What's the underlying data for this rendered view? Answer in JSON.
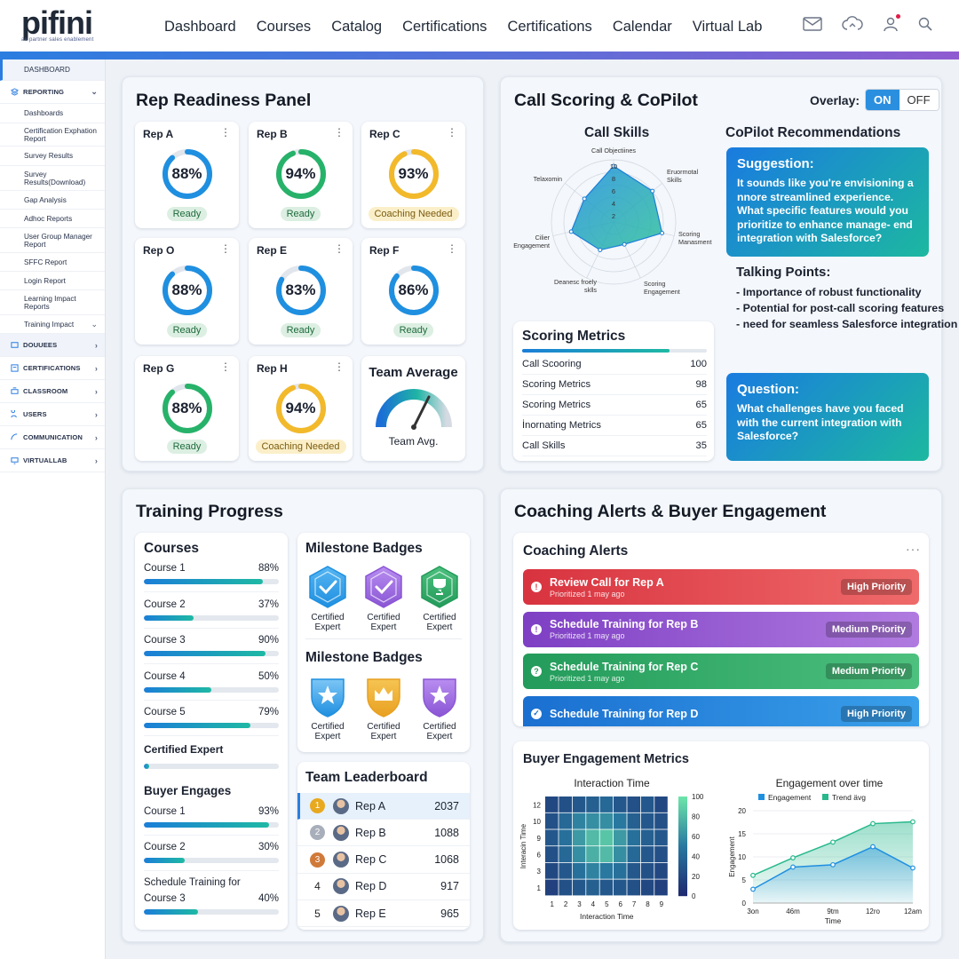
{
  "brand": {
    "name": "pifini",
    "tagline": "ae partner sales enablement"
  },
  "nav": [
    "Dashboard",
    "Courses",
    "Catalog",
    "Certifications",
    "Certifications",
    "Calendar",
    "Virtual Lab"
  ],
  "sidebar": {
    "dashboard": "DASHBOARD",
    "reporting": "REPORTING",
    "reporting_items": [
      "Dashboards",
      "Certification Exphation Report",
      "Survey Results",
      "Survey Results(Download)",
      "Gap Analysis",
      "Adhoc Reports",
      "User Group Manager Report",
      "SFFC Report",
      "Login Report",
      "Learning Impact Reports",
      "Training Impact"
    ],
    "sections": [
      "DOUUEES",
      "CERTIFICATIONS",
      "CLASSROOM",
      "USERS",
      "COMMUNICATION",
      "VIRTUALLAB"
    ]
  },
  "rep_panel": {
    "title": "Rep Readiness Panel",
    "reps": [
      {
        "name": "Rep A",
        "pct": "88%",
        "value": 88,
        "status": "Ready",
        "color": "#1f8fe0"
      },
      {
        "name": "Rep B",
        "pct": "94%",
        "value": 94,
        "status": "Ready",
        "color": "#27b26a"
      },
      {
        "name": "Rep C",
        "pct": "93%",
        "value": 93,
        "status": "Coaching Needed",
        "color": "#f2b92b"
      },
      {
        "name": "Rep O",
        "pct": "88%",
        "value": 88,
        "status": "Ready",
        "color": "#1f8fe0"
      },
      {
        "name": "Rep E",
        "pct": "83%",
        "value": 83,
        "status": "Ready",
        "color": "#1f8fe0"
      },
      {
        "name": "Rep F",
        "pct": "86%",
        "value": 86,
        "status": "Ready",
        "color": "#1f8fe0"
      },
      {
        "name": "Rep G",
        "pct": "88%",
        "value": 88,
        "status": "Ready",
        "color": "#27b26a"
      },
      {
        "name": "Rep H",
        "pct": "94%",
        "value": 94,
        "status": "Coaching Needed",
        "color": "#f2b92b"
      }
    ],
    "team_avg_title": "Team Average",
    "team_avg_label": "Team Avg."
  },
  "call_scoring": {
    "title": "Call Scoring & CoPilot",
    "overlay_label": "Overlay:",
    "on": "ON",
    "off": "OFF",
    "call_skills_title": "Call Skills",
    "radar_axes": [
      "Call Objectiines",
      "Eruormotal Skills",
      "Scoring Manasment",
      "Scoring Engagement",
      "Deanesc froely sklls",
      "Cilier Engagement",
      "Telaxomin"
    ],
    "radar_ticks": [
      "10",
      "8",
      "6",
      "4",
      "2"
    ],
    "radar_values": [
      9,
      8,
      8,
      4,
      5,
      7,
      6
    ],
    "metrics_title": "Scoring Metrics",
    "metrics": [
      {
        "label": "Call Scooring",
        "value": "100"
      },
      {
        "label": "Scoring Metrics",
        "value": "98"
      },
      {
        "label": "Scoring Metrics",
        "value": "65"
      },
      {
        "label": "İnornating Metrics",
        "value": "65"
      },
      {
        "label": "Call Skills",
        "value": "35"
      }
    ],
    "copilot_title": "CoPilot Recommendations",
    "suggestion_title": "Suggestion:",
    "suggestion_text": "It sounds like you're envisioning a nnore streamlined experience. What specific features would you prioritize to enhance manage- end integration with Salesforce?",
    "talking_title": "Talking Points:",
    "talking_points": [
      "- Importance of robust functionality",
      "- Potential for post-call scoring features",
      "- need for seamless Salesforce integration"
    ],
    "question_title": "Question:",
    "question_text": "What challenges have you faced with the current integration with Salesforce?"
  },
  "training": {
    "title": "Training Progress",
    "courses_title": "Courses",
    "courses": [
      {
        "label": "Course 1",
        "pct": "88%",
        "value": 88
      },
      {
        "label": "Course 2",
        "pct": "37%",
        "value": 37
      },
      {
        "label": "Course 3",
        "pct": "90%",
        "value": 90
      },
      {
        "label": "Course 4",
        "pct": "50%",
        "value": 50
      },
      {
        "label": "Course 5",
        "pct": "79%",
        "value": 79
      }
    ],
    "certified_label": "Certified Expert",
    "certified_value": 4,
    "buyer_title": "Buyer Engages",
    "buyer_courses": [
      {
        "label": "Course 1",
        "pct": "93%",
        "value": 93
      },
      {
        "label": "Course 2",
        "pct": "30%",
        "value": 30
      }
    ],
    "schedule_label": "Schedule Training for",
    "schedule_course": {
      "label": "Course 3",
      "pct": "40%",
      "value": 40
    },
    "badges_title1": "Milestone Badges",
    "badges_title2": "Milestone Badges",
    "badge_label": "Certified Expert",
    "leaderboard_title": "Team Leaderboard",
    "leaderboard": [
      {
        "rank": "1",
        "name": "Rep A",
        "score": "2037",
        "color": "#e8a920"
      },
      {
        "rank": "2",
        "name": "Rep B",
        "score": "1088",
        "color": "#a8afba"
      },
      {
        "rank": "3",
        "name": "Rep C",
        "score": "1068",
        "color": "#d07a3a"
      },
      {
        "rank": "4",
        "name": "Rep D",
        "score": "917",
        "color": ""
      },
      {
        "rank": "5",
        "name": "Rep E",
        "score": "965",
        "color": ""
      }
    ]
  },
  "coaching": {
    "title": "Coaching Alerts & Buyer Engagement",
    "alerts_title": "Coaching Alerts",
    "alerts": [
      {
        "title": "Review Call for Rep A",
        "sub": "Prioritized 1 may ago",
        "priority": "High Priority",
        "icon": "!",
        "c1": "#d8333f",
        "c2": "#ef6a6a"
      },
      {
        "title": "Schedule Training for Rep B",
        "sub": "Prioritized 1 may ago",
        "priority": "Medium Priority",
        "icon": "!",
        "c1": "#7e3fc4",
        "c2": "#b07be0"
      },
      {
        "title": "Schedule Training for Rep C",
        "sub": "Prioritized 1 may ago",
        "priority": "Medium Priority",
        "icon": "?",
        "c1": "#239b5a",
        "c2": "#4dc07e"
      },
      {
        "title": "Schedule Training for Rep D",
        "sub": "",
        "priority": "High Priority",
        "icon": "✓",
        "c1": "#1a6fd0",
        "c2": "#3aa0ea"
      }
    ],
    "buyer_title": "Buyer Engagement Metrics"
  },
  "chart_data": [
    {
      "type": "heatmap",
      "title": "Interaction Time",
      "xlabel": "Interaction Time",
      "ylabel": "Interacin Time",
      "x": [
        "1",
        "2",
        "3",
        "4",
        "5",
        "6",
        "7",
        "8",
        "9"
      ],
      "y": [
        "12",
        "10",
        "9",
        "6",
        "3",
        "1"
      ],
      "values": [
        [
          20,
          25,
          30,
          35,
          40,
          30,
          25,
          30,
          20
        ],
        [
          25,
          40,
          55,
          60,
          60,
          50,
          35,
          30,
          25
        ],
        [
          30,
          45,
          65,
          80,
          85,
          65,
          45,
          35,
          30
        ],
        [
          25,
          40,
          60,
          75,
          80,
          60,
          40,
          30,
          25
        ],
        [
          20,
          30,
          45,
          55,
          50,
          45,
          30,
          25,
          20
        ],
        [
          15,
          25,
          30,
          35,
          30,
          30,
          25,
          20,
          15
        ]
      ],
      "colorbar_ticks": [
        "100",
        "80",
        "60",
        "40",
        "20",
        "0"
      ]
    },
    {
      "type": "area",
      "title": "Engagement over time",
      "xlabel": "Time",
      "ylabel": "Engagement",
      "categories": [
        "3on",
        "46m",
        "9tm",
        "12ro",
        "12am"
      ],
      "ylim": [
        0,
        20
      ],
      "yticks": [
        "20",
        "15",
        "10",
        "5",
        "0"
      ],
      "series": [
        {
          "name": "Engagement",
          "values": [
            3,
            7.8,
            8.3,
            12.2,
            7.6
          ],
          "color": "#1f8fe0"
        },
        {
          "name": "Trend ävg",
          "values": [
            6,
            9.8,
            13.2,
            17.2,
            17.6
          ],
          "color": "#27b88c"
        }
      ]
    }
  ]
}
